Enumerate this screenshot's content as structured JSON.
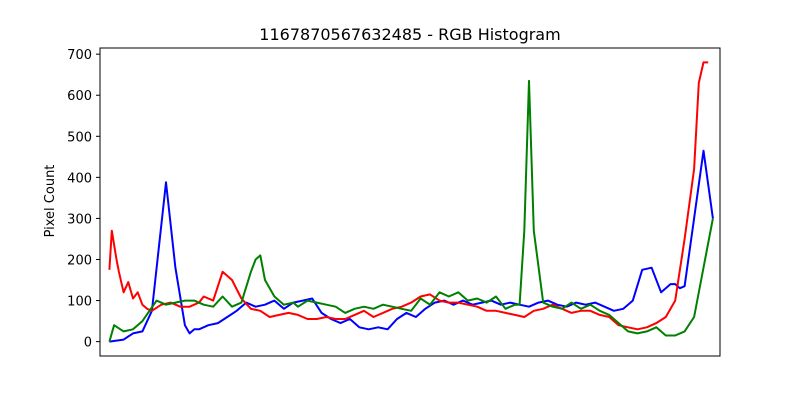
{
  "chart_data": {
    "type": "line",
    "title": "1167870567632485 - RGB Histogram",
    "xlabel": "",
    "ylabel": "Pixel Count",
    "xlim": [
      -4,
      259
    ],
    "ylim": [
      -35,
      715
    ],
    "yticks": [
      0,
      100,
      200,
      300,
      400,
      500,
      600,
      700
    ],
    "x_tick_labels_visible": false,
    "grid": false,
    "series": [
      {
        "color": "#0000ff",
        "x": [
          0,
          6,
          10,
          14,
          18,
          24,
          28,
          32,
          34,
          36,
          38,
          42,
          46,
          50,
          54,
          58,
          62,
          66,
          70,
          74,
          78,
          82,
          86,
          90,
          94,
          98,
          102,
          106,
          110,
          114,
          118,
          122,
          126,
          130,
          134,
          138,
          142,
          146,
          150,
          154,
          158,
          162,
          166,
          170,
          174,
          178,
          182,
          186,
          190,
          194,
          198,
          202,
          206,
          210,
          214,
          218,
          222,
          226,
          230,
          234,
          236,
          238,
          240,
          242,
          244,
          248,
          252,
          256
        ],
        "values": [
          0,
          5,
          20,
          25,
          75,
          388,
          180,
          40,
          20,
          30,
          30,
          40,
          45,
          60,
          75,
          95,
          85,
          90,
          100,
          80,
          95,
          100,
          105,
          70,
          55,
          45,
          55,
          35,
          30,
          35,
          30,
          55,
          70,
          60,
          80,
          95,
          100,
          90,
          100,
          90,
          95,
          100,
          90,
          95,
          90,
          85,
          95,
          100,
          90,
          85,
          95,
          90,
          95,
          85,
          75,
          80,
          100,
          175,
          180,
          120,
          130,
          140,
          140,
          130,
          135,
          300,
          465,
          300
        ]
      },
      {
        "color": "#ff0000",
        "x": [
          0,
          1,
          3,
          4,
          6,
          8,
          10,
          12,
          14,
          16,
          18,
          22,
          26,
          30,
          34,
          38,
          40,
          44,
          48,
          52,
          56,
          60,
          64,
          68,
          72,
          76,
          80,
          84,
          88,
          92,
          96,
          100,
          104,
          108,
          112,
          116,
          120,
          124,
          128,
          132,
          136,
          140,
          144,
          148,
          152,
          156,
          160,
          164,
          168,
          172,
          176,
          180,
          184,
          188,
          192,
          196,
          200,
          204,
          208,
          212,
          216,
          220,
          224,
          228,
          232,
          236,
          240,
          244,
          248,
          250,
          252,
          254
        ],
        "values": [
          175,
          270,
          200,
          170,
          120,
          145,
          105,
          120,
          90,
          80,
          75,
          90,
          95,
          85,
          85,
          95,
          110,
          100,
          170,
          150,
          105,
          80,
          75,
          60,
          65,
          70,
          65,
          55,
          55,
          60,
          55,
          55,
          65,
          75,
          60,
          70,
          80,
          85,
          95,
          110,
          115,
          100,
          95,
          95,
          90,
          85,
          75,
          75,
          70,
          65,
          60,
          75,
          80,
          90,
          80,
          70,
          75,
          75,
          65,
          60,
          40,
          35,
          30,
          35,
          45,
          60,
          100,
          250,
          420,
          630,
          680,
          680
        ]
      },
      {
        "color": "#008000",
        "x": [
          0,
          2,
          6,
          10,
          14,
          20,
          24,
          28,
          32,
          36,
          40,
          44,
          48,
          52,
          56,
          60,
          62,
          64,
          66,
          70,
          74,
          78,
          80,
          84,
          88,
          92,
          96,
          100,
          104,
          108,
          112,
          116,
          120,
          124,
          128,
          132,
          136,
          140,
          144,
          148,
          152,
          156,
          160,
          164,
          168,
          172,
          174,
          176,
          178,
          180,
          184,
          188,
          192,
          196,
          200,
          204,
          208,
          212,
          216,
          220,
          224,
          228,
          232,
          236,
          240,
          244,
          248,
          252,
          256
        ],
        "values": [
          0,
          40,
          25,
          30,
          50,
          100,
          90,
          95,
          100,
          100,
          90,
          85,
          110,
          85,
          95,
          170,
          200,
          210,
          150,
          110,
          90,
          95,
          85,
          100,
          95,
          90,
          85,
          70,
          80,
          85,
          80,
          90,
          85,
          80,
          75,
          105,
          90,
          120,
          110,
          120,
          100,
          105,
          95,
          110,
          80,
          90,
          90,
          270,
          635,
          270,
          95,
          85,
          80,
          95,
          80,
          90,
          75,
          65,
          45,
          25,
          20,
          25,
          35,
          15,
          15,
          25,
          60,
          180,
          300
        ]
      }
    ]
  }
}
